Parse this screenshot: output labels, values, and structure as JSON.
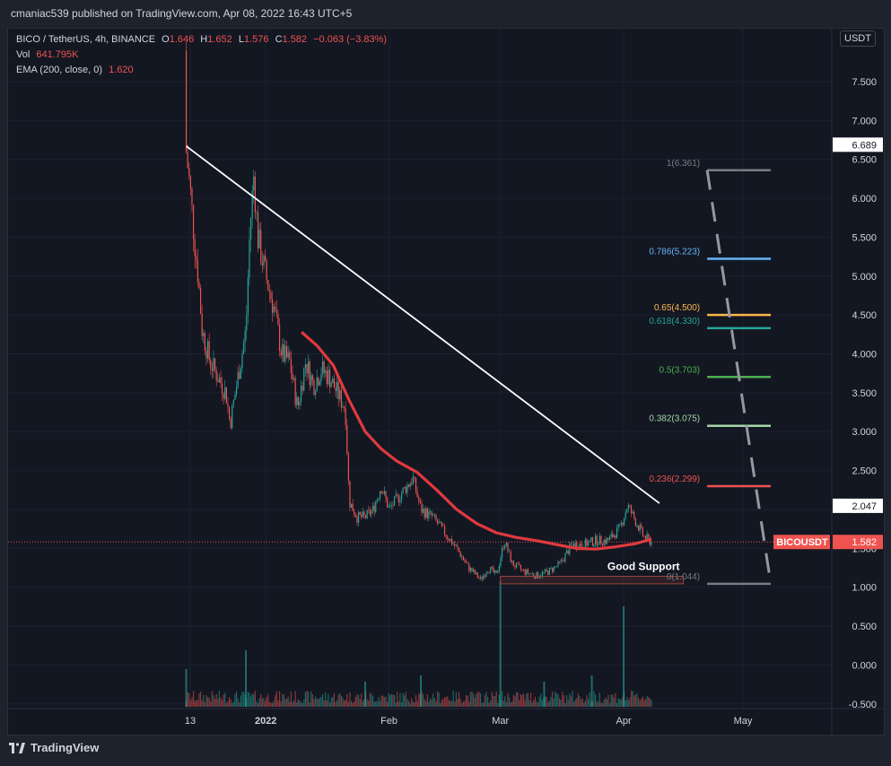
{
  "header": {
    "published": "cmaniac539 published on TradingView.com, Apr 08, 2022 16:43 UTC+5"
  },
  "legend": {
    "symbol": "BICO / TetherUS, 4h, BINANCE",
    "o_label": "O",
    "o_val": "1.646",
    "h_label": "H",
    "h_val": "1.652",
    "l_label": "L",
    "l_val": "1.576",
    "c_label": "C",
    "c_val": "1.582",
    "change": "−0.063 (−3.83%)",
    "vol_label": "Vol",
    "vol_val": "641.795K",
    "ema_label": "EMA (200, close, 0)",
    "ema_val": "1.620"
  },
  "currency": "USDT",
  "footer": {
    "brand": "TradingView"
  },
  "colors": {
    "background": "#131722",
    "up": "#26a69a",
    "down": "#ef5350",
    "ema": "#e0393e",
    "trendline": "#ffffff",
    "grid": "#1e222d"
  },
  "chart_data": {
    "type": "candlestick",
    "symbol": "BICOUSDT",
    "interval": "4h",
    "y_axis": {
      "ticks": [
        -0.5,
        0,
        0.5,
        1,
        1.5,
        2,
        2.5,
        3,
        3.5,
        4,
        4.5,
        5,
        5.5,
        6,
        6.5,
        7,
        7.5
      ],
      "ylim": [
        -0.56,
        8.18
      ]
    },
    "x_axis": {
      "ticks": [
        "13",
        "2022",
        "Feb",
        "Mar",
        "Apr",
        "May"
      ],
      "tick_dates": [
        "2021-12-13",
        "2022-01-01",
        "2022-02-01",
        "2022-03-01",
        "2022-04-01",
        "2022-05-01"
      ]
    },
    "price_path": [
      [
        "2021-12-12",
        7.9
      ],
      [
        "2021-12-12",
        6.6
      ],
      [
        "2021-12-13",
        6.1
      ],
      [
        "2021-12-14",
        5.5
      ],
      [
        "2021-12-15",
        5.0
      ],
      [
        "2021-12-16",
        4.3
      ],
      [
        "2021-12-18",
        3.9
      ],
      [
        "2021-12-20",
        3.7
      ],
      [
        "2021-12-22",
        3.5
      ],
      [
        "2021-12-23",
        3.1
      ],
      [
        "2021-12-25",
        3.7
      ],
      [
        "2021-12-27",
        4.3
      ],
      [
        "2021-12-28",
        5.6
      ],
      [
        "2021-12-29",
        6.3
      ],
      [
        "2021-12-30",
        5.5
      ],
      [
        "2022-01-01",
        5.0
      ],
      [
        "2022-01-03",
        4.6
      ],
      [
        "2022-01-05",
        4.0
      ],
      [
        "2022-01-07",
        3.9
      ],
      [
        "2022-01-09",
        3.3
      ],
      [
        "2022-01-11",
        3.9
      ],
      [
        "2022-01-13",
        3.6
      ],
      [
        "2022-01-15",
        3.8
      ],
      [
        "2022-01-17",
        3.7
      ],
      [
        "2022-01-19",
        3.5
      ],
      [
        "2022-01-21",
        3.3
      ],
      [
        "2022-01-22",
        2.1
      ],
      [
        "2022-01-24",
        1.9
      ],
      [
        "2022-01-26",
        1.9
      ],
      [
        "2022-01-28",
        2.0
      ],
      [
        "2022-01-30",
        2.3
      ],
      [
        "2022-02-01",
        2.0
      ],
      [
        "2022-02-04",
        2.2
      ],
      [
        "2022-02-07",
        2.4
      ],
      [
        "2022-02-09",
        2.0
      ],
      [
        "2022-02-12",
        1.9
      ],
      [
        "2022-02-15",
        1.7
      ],
      [
        "2022-02-18",
        1.5
      ],
      [
        "2022-02-21",
        1.25
      ],
      [
        "2022-02-24",
        1.1
      ],
      [
        "2022-02-26",
        1.25
      ],
      [
        "2022-02-28",
        1.15
      ],
      [
        "2022-03-02",
        1.6
      ],
      [
        "2022-03-04",
        1.3
      ],
      [
        "2022-03-07",
        1.2
      ],
      [
        "2022-03-10",
        1.15
      ],
      [
        "2022-03-13",
        1.2
      ],
      [
        "2022-03-16",
        1.3
      ],
      [
        "2022-03-19",
        1.55
      ],
      [
        "2022-03-22",
        1.55
      ],
      [
        "2022-03-25",
        1.6
      ],
      [
        "2022-03-28",
        1.6
      ],
      [
        "2022-03-31",
        1.75
      ],
      [
        "2022-04-02",
        2.05
      ],
      [
        "2022-04-04",
        1.85
      ],
      [
        "2022-04-06",
        1.65
      ],
      [
        "2022-04-08",
        1.58
      ]
    ],
    "ema_path": [
      [
        "2022-01-10",
        4.28
      ],
      [
        "2022-01-14",
        4.1
      ],
      [
        "2022-01-18",
        3.85
      ],
      [
        "2022-01-22",
        3.4
      ],
      [
        "2022-01-26",
        3.0
      ],
      [
        "2022-01-30",
        2.78
      ],
      [
        "2022-02-03",
        2.62
      ],
      [
        "2022-02-08",
        2.48
      ],
      [
        "2022-02-13",
        2.25
      ],
      [
        "2022-02-18",
        2.0
      ],
      [
        "2022-02-23",
        1.82
      ],
      [
        "2022-02-28",
        1.7
      ],
      [
        "2022-03-05",
        1.64
      ],
      [
        "2022-03-10",
        1.6
      ],
      [
        "2022-03-15",
        1.55
      ],
      [
        "2022-03-20",
        1.5
      ],
      [
        "2022-03-25",
        1.49
      ],
      [
        "2022-03-30",
        1.52
      ],
      [
        "2022-04-04",
        1.56
      ],
      [
        "2022-04-08",
        1.62
      ]
    ],
    "trendline": {
      "from": [
        "2021-12-12",
        6.67
      ],
      "to": [
        "2022-04-10",
        2.08
      ]
    },
    "fib_levels": [
      {
        "label": "1(6.361)",
        "value": 6.361,
        "color": "#787b86"
      },
      {
        "label": "0.786(5.223)",
        "value": 5.223,
        "color": "#64b5f6"
      },
      {
        "label": "0.65(4.500)",
        "value": 4.5,
        "color": "#ffb74d"
      },
      {
        "label": "0.618(4.330)",
        "value": 4.33,
        "color": "#26a69a"
      },
      {
        "label": "0.5(3.703)",
        "value": 3.703,
        "color": "#4caf50"
      },
      {
        "label": "0.382(3.075)",
        "value": 3.075,
        "color": "#a5d6a7"
      },
      {
        "label": "0.236(2.299)",
        "value": 2.299,
        "color": "#ef5350"
      },
      {
        "label": "0(1.044)",
        "value": 1.044,
        "color": "#787b86"
      }
    ],
    "fib_range": {
      "start": "2022-04-22",
      "end": "2022-05-08"
    },
    "support_box": {
      "from": "2022-03-01",
      "to": "2022-04-16",
      "low": 1.044,
      "high": 1.14,
      "label": "Good Support"
    },
    "price_labels": [
      {
        "text": "6.689",
        "value": 6.689
      },
      {
        "text": "2.047",
        "value": 2.047
      }
    ],
    "current": {
      "symbol_label": "BICOUSDT",
      "price_label": "1.582",
      "value": 1.582
    },
    "volume_spikes": [
      [
        "2021-12-12",
        0.3
      ],
      [
        "2021-12-27",
        0.45
      ],
      [
        "2022-01-26",
        0.2
      ],
      [
        "2022-02-09",
        0.25
      ],
      [
        "2022-03-01",
        1.0
      ],
      [
        "2022-03-12",
        0.2
      ],
      [
        "2022-03-24",
        0.25
      ],
      [
        "2022-04-01",
        0.8
      ]
    ]
  }
}
